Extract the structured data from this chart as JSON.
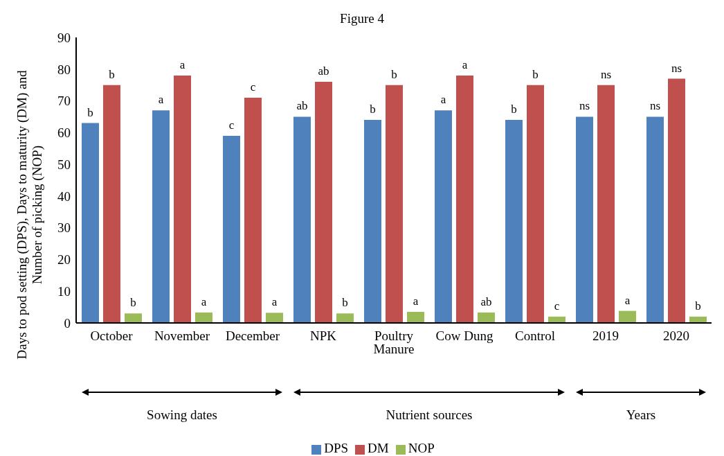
{
  "chart_data": {
    "type": "bar",
    "title": "Figure 4",
    "ylabel": "Days to pod setting (DPS), Days to maturity (DM) and Number of picking (NOP)",
    "categories": [
      "October",
      "November",
      "December",
      "NPK",
      "Poultry Manure",
      "Cow Dung",
      "Control",
      "2019",
      "2020"
    ],
    "series": [
      {
        "name": "DPS",
        "color": "#4f81bd",
        "values": [
          63,
          67,
          59,
          65,
          64,
          67,
          64,
          65,
          65
        ],
        "value_labels": [
          "b",
          "a",
          "c",
          "ab",
          "b",
          "a",
          "b",
          "ns",
          "ns"
        ]
      },
      {
        "name": "DM",
        "color": "#c0504d",
        "values": [
          75,
          78,
          71,
          76,
          75,
          78,
          75,
          75,
          77
        ],
        "value_labels": [
          "b",
          "a",
          "c",
          "ab",
          "b",
          "a",
          "b",
          "ns",
          "ns"
        ]
      },
      {
        "name": "NOP",
        "color": "#9bbb59",
        "values": [
          3,
          3.3,
          3.2,
          3,
          3.5,
          3.3,
          2,
          3.8,
          2
        ],
        "value_labels": [
          "b",
          "a",
          "a",
          "b",
          "a",
          "ab",
          "c",
          "a",
          "b"
        ]
      }
    ],
    "annotations": [
      "Sowing dates",
      "Nutrient sources",
      "Years"
    ],
    "ylim": [
      0,
      90
    ],
    "yticks": [
      0,
      10,
      20,
      30,
      40,
      50,
      60,
      70,
      80,
      90
    ],
    "grid": false,
    "legend": "bottom"
  }
}
